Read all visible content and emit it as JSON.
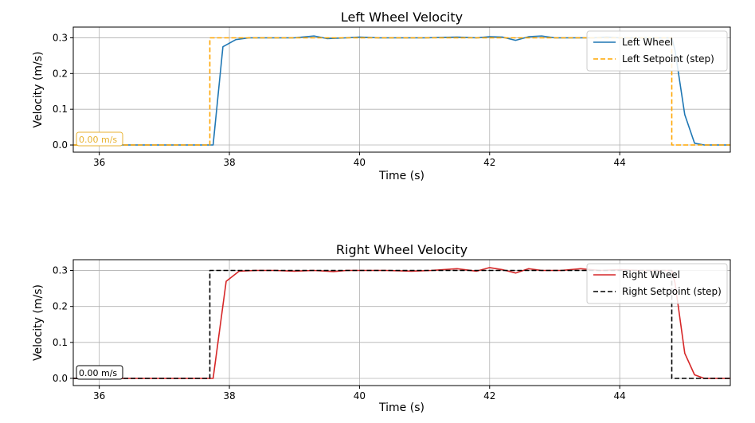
{
  "chart_data": [
    {
      "type": "line",
      "title": "Left Wheel Velocity",
      "xlabel": "Time (s)",
      "ylabel": "Velocity (m/s)",
      "xlim": [
        35.6,
        45.7
      ],
      "ylim": [
        -0.02,
        0.33
      ],
      "xticks": [
        36,
        38,
        40,
        42,
        44
      ],
      "yticks": [
        0.0,
        0.1,
        0.2,
        0.3
      ],
      "ytick_labels": [
        "0.0",
        "0.1",
        "0.2",
        "0.3"
      ],
      "grid": true,
      "legend": "top-right",
      "annotation": {
        "text": "0.00 m/s",
        "color": "#e8b230"
      },
      "series": [
        {
          "name": "Left Wheel",
          "color": "#1f77b4",
          "style": "solid",
          "x": [
            35.6,
            36.0,
            36.5,
            37.0,
            37.5,
            37.75,
            37.9,
            38.1,
            38.3,
            38.6,
            39.0,
            39.3,
            39.5,
            39.8,
            40.0,
            40.3,
            40.6,
            41.0,
            41.5,
            41.8,
            42.0,
            42.2,
            42.4,
            42.6,
            42.8,
            43.0,
            43.3,
            43.6,
            43.8,
            44.0,
            44.3,
            44.6,
            44.8,
            44.85,
            45.0,
            45.15,
            45.3,
            45.5,
            45.7
          ],
          "y": [
            0.0,
            0.0,
            0.0,
            0.0,
            0.0,
            0.0,
            0.275,
            0.295,
            0.3,
            0.3,
            0.3,
            0.305,
            0.298,
            0.3,
            0.302,
            0.3,
            0.3,
            0.3,
            0.302,
            0.3,
            0.303,
            0.302,
            0.293,
            0.303,
            0.305,
            0.3,
            0.3,
            0.3,
            0.302,
            0.3,
            0.3,
            0.3,
            0.3,
            0.265,
            0.085,
            0.005,
            0.0,
            0.0,
            0.0
          ]
        },
        {
          "name": "Left Setpoint (step)",
          "color": "#ffa500",
          "style": "dashed",
          "x": [
            35.6,
            37.7,
            37.7,
            44.8,
            44.8,
            45.7
          ],
          "y": [
            0.0,
            0.0,
            0.3,
            0.3,
            0.0,
            0.0
          ]
        }
      ]
    },
    {
      "type": "line",
      "title": "Right Wheel Velocity",
      "xlabel": "Time (s)",
      "ylabel": "Velocity (m/s)",
      "xlim": [
        35.6,
        45.7
      ],
      "ylim": [
        -0.02,
        0.33
      ],
      "xticks": [
        36,
        38,
        40,
        42,
        44
      ],
      "yticks": [
        0.0,
        0.1,
        0.2,
        0.3
      ],
      "ytick_labels": [
        "0.0",
        "0.1",
        "0.2",
        "0.3"
      ],
      "grid": true,
      "legend": "top-right",
      "annotation": {
        "text": "0.00 m/s",
        "color": "#000000"
      },
      "series": [
        {
          "name": "Right Wheel",
          "color": "#d62728",
          "style": "solid",
          "x": [
            35.6,
            36.0,
            36.5,
            37.0,
            37.5,
            37.75,
            37.95,
            38.15,
            38.4,
            38.7,
            39.0,
            39.3,
            39.6,
            39.8,
            40.0,
            40.4,
            40.8,
            41.1,
            41.5,
            41.8,
            42.0,
            42.2,
            42.4,
            42.6,
            42.8,
            43.1,
            43.4,
            43.7,
            44.0,
            44.3,
            44.6,
            44.8,
            44.85,
            45.0,
            45.15,
            45.3,
            45.5,
            45.7
          ],
          "y": [
            0.0,
            0.0,
            0.0,
            0.0,
            0.0,
            0.0,
            0.27,
            0.298,
            0.3,
            0.3,
            0.298,
            0.3,
            0.297,
            0.3,
            0.3,
            0.3,
            0.298,
            0.3,
            0.305,
            0.298,
            0.308,
            0.302,
            0.293,
            0.305,
            0.3,
            0.3,
            0.305,
            0.3,
            0.302,
            0.3,
            0.3,
            0.3,
            0.265,
            0.07,
            0.01,
            0.0,
            0.0,
            0.0
          ]
        },
        {
          "name": "Right Setpoint (step)",
          "color": "#000000",
          "style": "dashed",
          "x": [
            35.6,
            37.7,
            37.7,
            44.8,
            44.8,
            45.7
          ],
          "y": [
            0.0,
            0.0,
            0.3,
            0.3,
            0.0,
            0.0
          ]
        }
      ]
    }
  ]
}
